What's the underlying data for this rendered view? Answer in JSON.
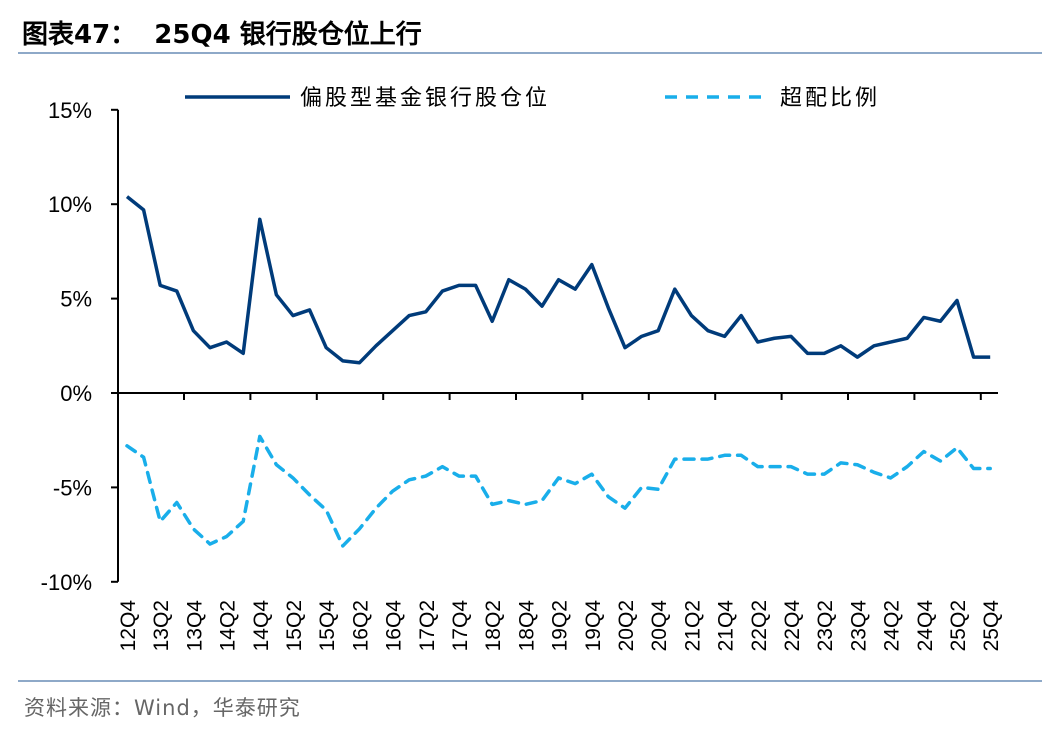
{
  "title": "图表47：  25Q4 银行股仓位上行",
  "source": "资料来源：Wind，华泰研究",
  "colors": {
    "solid": "#003B7A",
    "dashed": "#19AEEA",
    "rule": "#8EA9C8"
  },
  "chart_data": {
    "type": "line",
    "title": "",
    "xlabel": "",
    "ylabel": "",
    "ylim": [
      -10,
      15
    ],
    "yticks": [
      "-10%",
      "-5%",
      "0%",
      "5%",
      "10%",
      "15%"
    ],
    "ytick_values": [
      -10,
      -5,
      0,
      5,
      10,
      15
    ],
    "legend_position": "top",
    "x": [
      "12Q4",
      "13Q1",
      "13Q2",
      "13Q3",
      "13Q4",
      "14Q1",
      "14Q2",
      "14Q3",
      "14Q4",
      "15Q1",
      "15Q2",
      "15Q3",
      "15Q4",
      "16Q1",
      "16Q2",
      "16Q3",
      "16Q4",
      "17Q1",
      "17Q2",
      "17Q3",
      "17Q4",
      "18Q1",
      "18Q2",
      "18Q3",
      "18Q4",
      "19Q1",
      "19Q2",
      "19Q3",
      "19Q4",
      "20Q1",
      "20Q2",
      "20Q3",
      "20Q4",
      "21Q1",
      "21Q2",
      "21Q3",
      "21Q4",
      "22Q1",
      "22Q2",
      "22Q3",
      "22Q4",
      "23Q1",
      "23Q2",
      "23Q3",
      "23Q4",
      "24Q1",
      "24Q2",
      "24Q3",
      "24Q4",
      "25Q1",
      "25Q2",
      "25Q3",
      "25Q4"
    ],
    "xtick_labels": [
      "12Q4",
      "13Q2",
      "13Q4",
      "14Q2",
      "14Q4",
      "15Q2",
      "15Q4",
      "16Q2",
      "16Q4",
      "17Q2",
      "17Q4",
      "18Q2",
      "18Q4",
      "19Q2",
      "19Q4",
      "20Q2",
      "20Q4",
      "21Q2",
      "21Q4",
      "22Q2",
      "22Q4",
      "23Q2",
      "23Q4",
      "24Q2",
      "24Q4",
      "25Q2",
      "25Q4"
    ],
    "series": [
      {
        "name": "偏股型基金银行股仓位",
        "style": "solid",
        "values": [
          10.4,
          9.7,
          5.7,
          5.4,
          3.3,
          2.4,
          2.7,
          2.1,
          9.2,
          5.2,
          4.1,
          4.4,
          2.4,
          1.7,
          1.6,
          2.5,
          3.3,
          4.1,
          4.3,
          5.4,
          5.7,
          5.7,
          3.8,
          6.0,
          5.5,
          4.6,
          6.0,
          5.5,
          6.8,
          4.5,
          2.4,
          3.0,
          3.3,
          5.5,
          4.1,
          3.3,
          3.0,
          4.1,
          2.7,
          2.9,
          3.0,
          2.1,
          2.1,
          2.5,
          1.9,
          2.5,
          2.7,
          2.9,
          4.0,
          3.8,
          4.9,
          1.9,
          1.9
        ]
      },
      {
        "name": "超配比例",
        "style": "dashed",
        "values": [
          -2.8,
          -3.4,
          -6.8,
          -5.8,
          -7.2,
          -8.0,
          -7.6,
          -6.8,
          -2.3,
          -3.8,
          -4.5,
          -5.4,
          -6.2,
          -8.1,
          -7.2,
          -6.1,
          -5.2,
          -4.6,
          -4.4,
          -3.9,
          -4.4,
          -4.4,
          -5.9,
          -5.7,
          -5.9,
          -5.7,
          -4.5,
          -4.8,
          -4.3,
          -5.5,
          -6.1,
          -5.0,
          -5.1,
          -3.5,
          -3.5,
          -3.5,
          -3.3,
          -3.3,
          -3.9,
          -3.9,
          -3.9,
          -4.3,
          -4.3,
          -3.7,
          -3.8,
          -4.2,
          -4.5,
          -3.9,
          -3.1,
          -3.6,
          -2.9,
          -4.0,
          -4.0
        ]
      }
    ]
  }
}
